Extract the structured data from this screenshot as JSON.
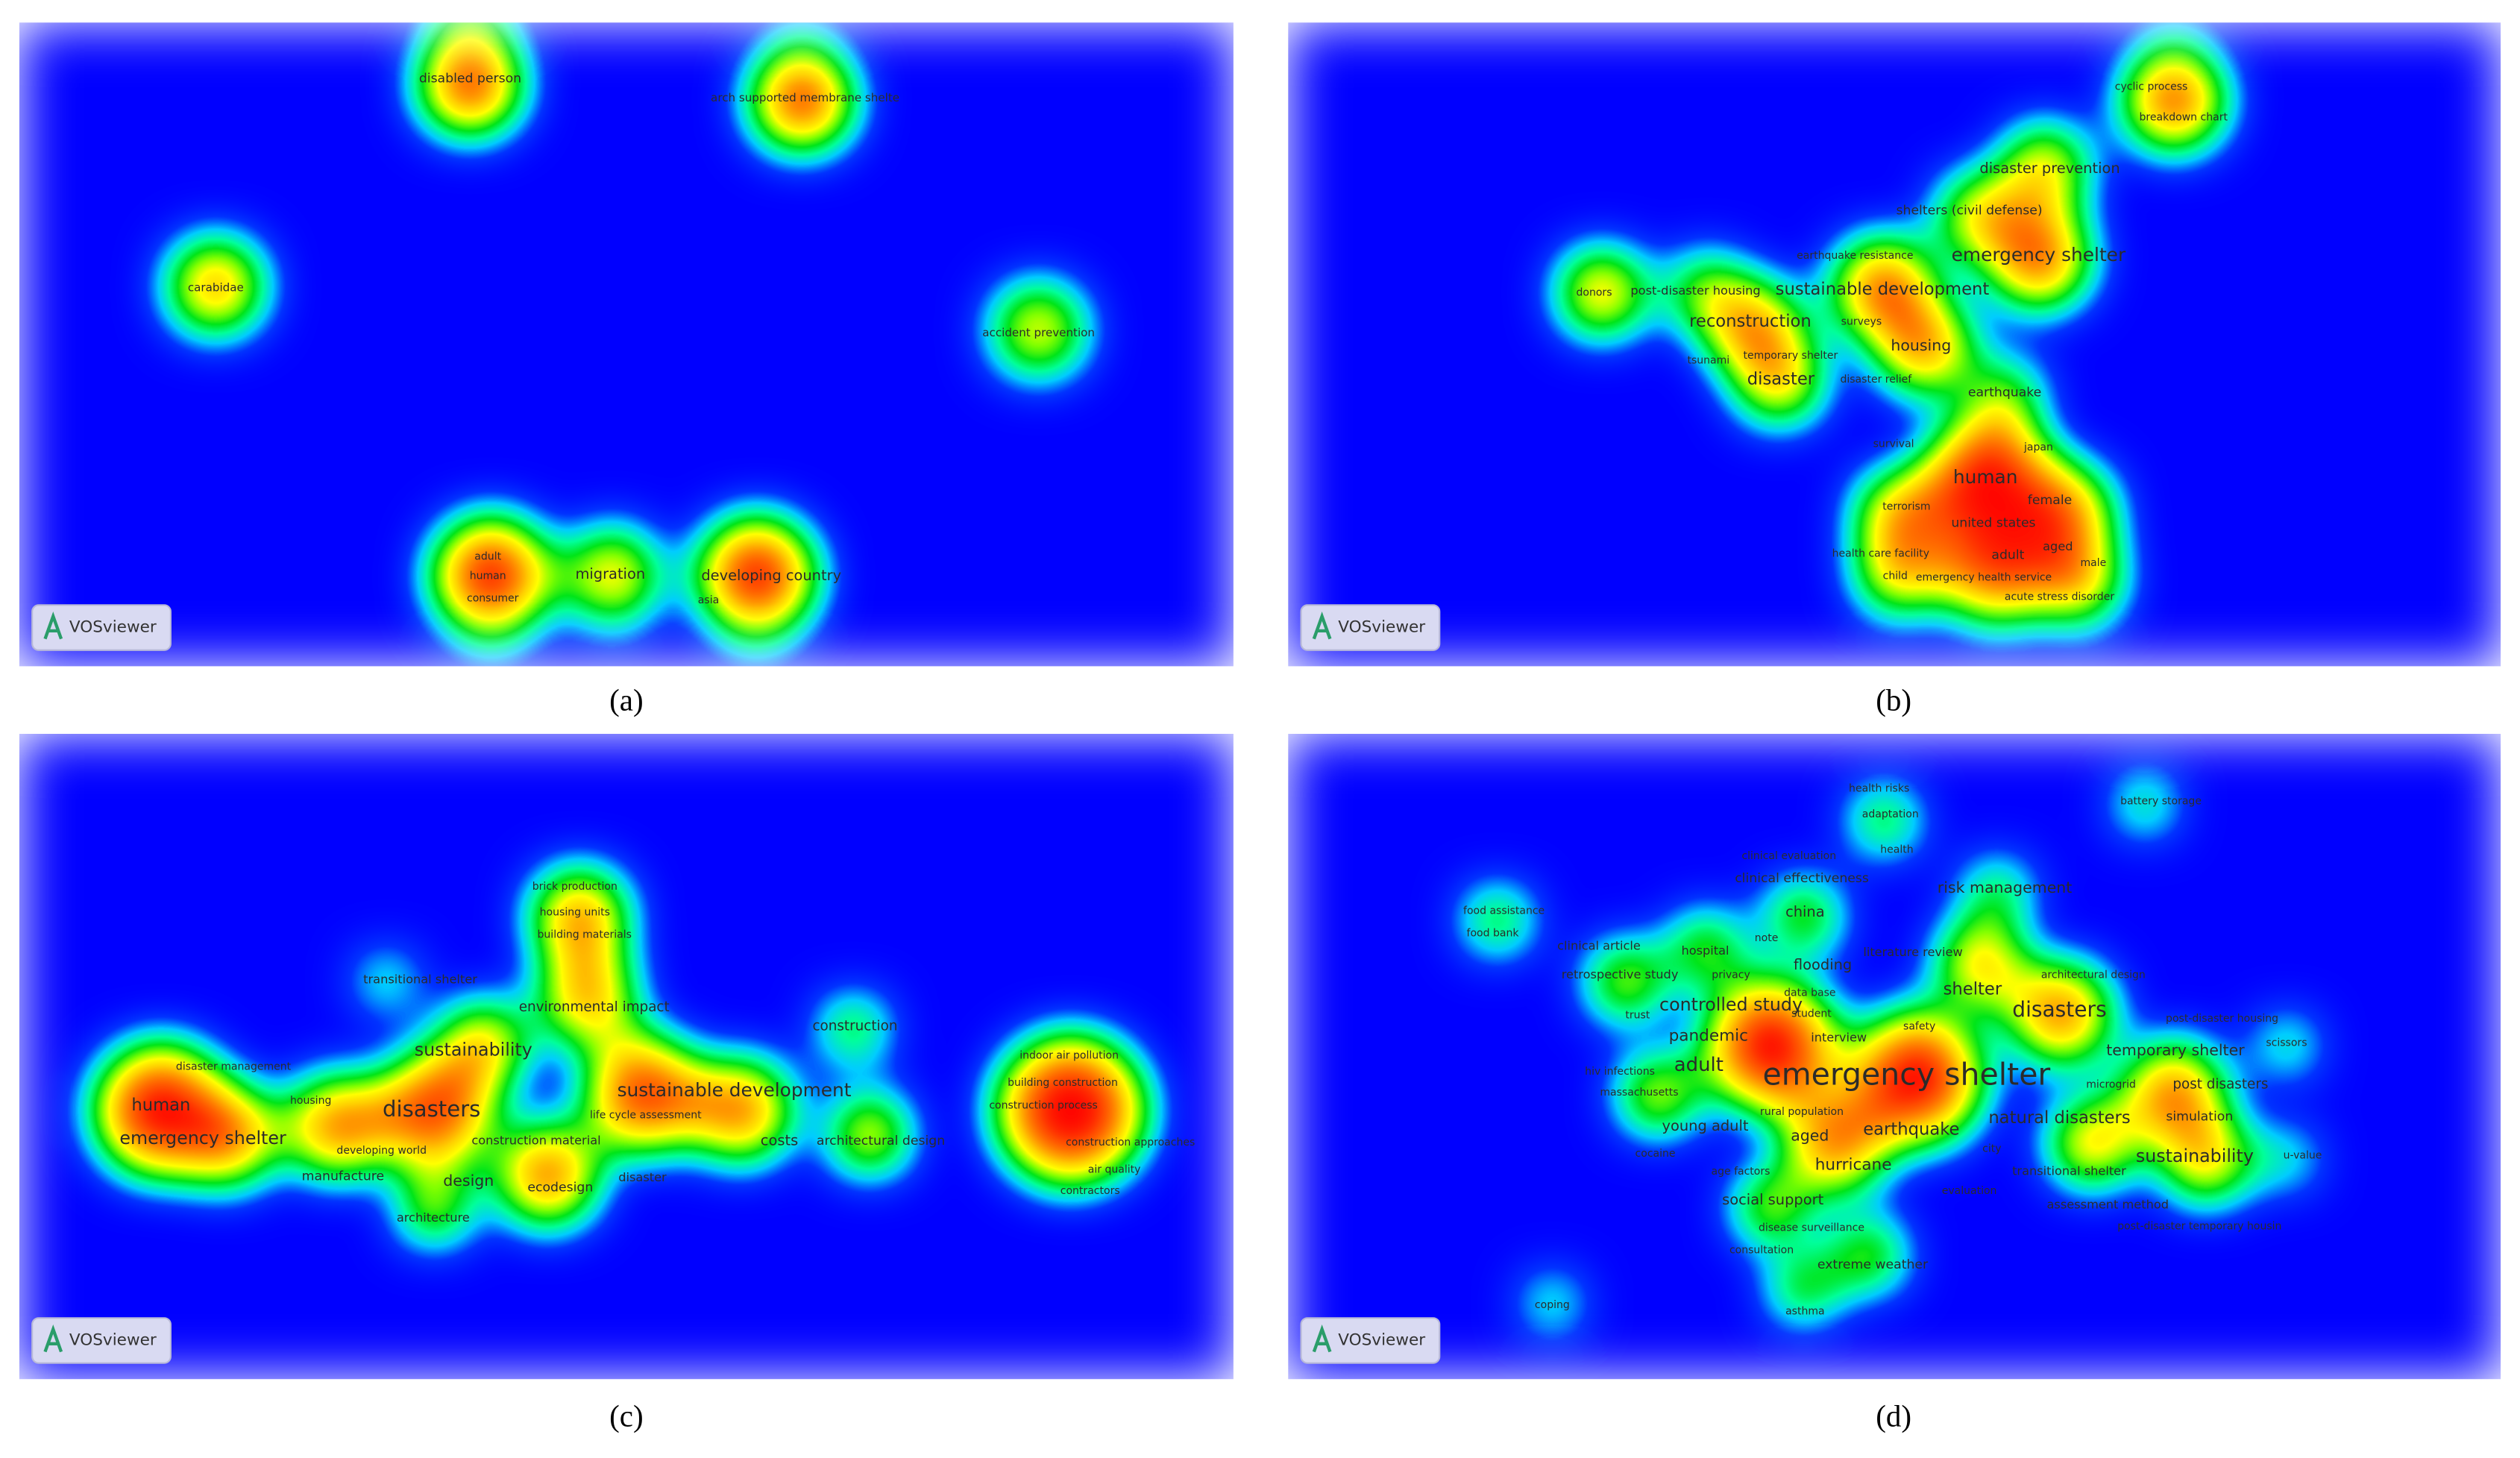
{
  "logo": "VOSviewer",
  "panels": [
    {
      "label": "(a)",
      "terms": [
        "disabled person",
        "arch supported membrane shelte",
        "carabidae",
        "accident prevention",
        "adult",
        "human",
        "consumer",
        "migration",
        "developing country",
        "asia"
      ]
    },
    {
      "label": "(b)",
      "terms": [
        "cyclic process",
        "breakdown chart",
        "disaster prevention",
        "shelters (civil defense)",
        "earthquake resistance",
        "emergency shelter",
        "donors",
        "post-disaster housing",
        "sustainable development",
        "reconstruction",
        "surveys",
        "housing",
        "tsunami",
        "temporary shelter",
        "disaster",
        "disaster relief",
        "earthquake",
        "survival",
        "japan",
        "human",
        "terrorism",
        "female",
        "united states",
        "health care facility",
        "adult",
        "aged",
        "male",
        "child",
        "emergency health service",
        "acute stress disorder"
      ]
    },
    {
      "label": "(c)",
      "terms": [
        "brick production",
        "housing units",
        "building materials",
        "transitional shelter",
        "environmental impact",
        "construction",
        "sustainability",
        "indoor air pollution",
        "disaster management",
        "human",
        "housing",
        "disasters",
        "sustainable development",
        "building construction",
        "construction process",
        "life cycle assessment",
        "emergency shelter",
        "developing world",
        "construction material",
        "costs",
        "architectural design",
        "construction approaches",
        "air quality",
        "manufacture",
        "design",
        "ecodesign",
        "disaster",
        "contractors",
        "architecture"
      ]
    },
    {
      "label": "(d)",
      "terms": [
        "health risks",
        "battery storage",
        "adaptation",
        "clinical evaluation",
        "health",
        "clinical effectiveness",
        "risk management",
        "food assistance",
        "china",
        "food bank",
        "note",
        "clinical article",
        "hospital",
        "literature review",
        "flooding",
        "retrospective study",
        "privacy",
        "architectural design",
        "shelter",
        "data base",
        "controlled study",
        "disasters",
        "trust",
        "student",
        "post-disaster housing",
        "safety",
        "pandemic",
        "interview",
        "scissors",
        "temporary shelter",
        "adult",
        "emergency shelter",
        "hiv infections",
        "massachusetts",
        "post disasters",
        "rural population",
        "young adult",
        "natural disasters",
        "simulation",
        "earthquake",
        "aged",
        "microgrid",
        "city",
        "cocaine",
        "sustainability",
        "u-value",
        "age factors",
        "hurricane",
        "transitional shelter",
        "evaluation",
        "social support",
        "assessment method",
        "disease surveillance",
        "post-disaster temporary housin",
        "consultation",
        "extreme weather",
        "coping",
        "asthma"
      ]
    }
  ]
}
